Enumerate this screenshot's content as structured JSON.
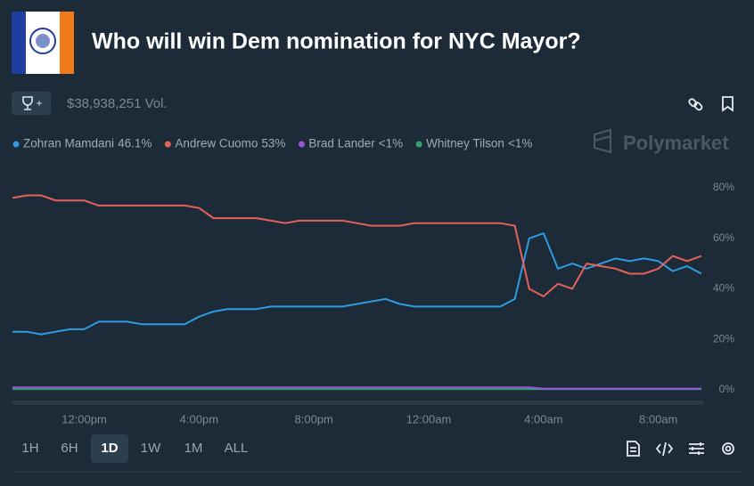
{
  "header": {
    "title": "Who will win Dem nomination for NYC Mayor?",
    "volume": "$38,938,251 Vol.",
    "brand": "Polymarket"
  },
  "controls": {
    "ranges": [
      "1H",
      "6H",
      "1D",
      "1W",
      "1M",
      "ALL"
    ],
    "active": "1D"
  },
  "chart_data": {
    "type": "line",
    "categories": [
      null,
      null,
      null,
      null,
      null,
      "12:00pm",
      null,
      null,
      null,
      null,
      null,
      null,
      null,
      "4:00pm",
      null,
      null,
      null,
      null,
      null,
      null,
      null,
      "8:00pm",
      null,
      null,
      null,
      null,
      null,
      null,
      null,
      "12:00am",
      null,
      null,
      null,
      null,
      null,
      null,
      null,
      "4:00am",
      null,
      null,
      null,
      null,
      null,
      null,
      null,
      "8:00am",
      null,
      null,
      null
    ],
    "series": [
      {
        "name": "Zohran Mamdani",
        "current": "46.1%",
        "color": "#2e9ce0",
        "values": [
          23,
          23,
          22,
          23,
          24,
          24,
          27,
          27,
          27,
          26,
          26,
          26,
          26,
          29,
          31,
          32,
          32,
          32,
          33,
          33,
          33,
          33,
          33,
          33,
          34,
          35,
          36,
          34,
          33,
          33,
          33,
          33,
          33,
          33,
          33,
          36,
          60,
          62,
          48,
          50,
          48,
          50,
          52,
          51,
          52,
          51,
          47,
          49,
          46
        ]
      },
      {
        "name": "Andrew Cuomo",
        "current": "53%",
        "color": "#e5615a",
        "values": [
          76,
          77,
          77,
          75,
          75,
          75,
          73,
          73,
          73,
          73,
          73,
          73,
          73,
          72,
          68,
          68,
          68,
          68,
          67,
          66,
          67,
          67,
          67,
          67,
          66,
          65,
          65,
          65,
          66,
          66,
          66,
          66,
          66,
          66,
          66,
          65,
          40,
          37,
          42,
          40,
          50,
          49,
          48,
          46,
          46,
          48,
          53,
          51,
          53
        ]
      },
      {
        "name": "Brad Lander",
        "current": "<1%",
        "color": "#9b55d8",
        "values": [
          1,
          1,
          1,
          1,
          1,
          1,
          1,
          1,
          1,
          1,
          1,
          1,
          1,
          1,
          1,
          1,
          1,
          1,
          1,
          1,
          1,
          1,
          1,
          1,
          1,
          1,
          1,
          1,
          1,
          1,
          1,
          1,
          1,
          1,
          1,
          1,
          1,
          0.5,
          0.5,
          0.5,
          0.5,
          0.5,
          0.5,
          0.5,
          0.5,
          0.5,
          0.5,
          0.5,
          0.5
        ]
      },
      {
        "name": "Whitney Tilson",
        "current": "<1%",
        "color": "#2fa46a",
        "values": [
          0.3,
          0.3,
          0.3,
          0.3,
          0.3,
          0.3,
          0.3,
          0.3,
          0.3,
          0.3,
          0.3,
          0.3,
          0.3,
          0.3,
          0.3,
          0.3,
          0.3,
          0.3,
          0.3,
          0.3,
          0.3,
          0.3,
          0.3,
          0.3,
          0.3,
          0.3,
          0.3,
          0.3,
          0.3,
          0.3,
          0.3,
          0.3,
          0.3,
          0.3,
          0.3,
          0.3,
          0.3,
          0.3,
          0.3,
          0.3,
          0.3,
          0.3,
          0.3,
          0.3,
          0.3,
          0.3,
          0.3,
          0.3,
          0.3
        ]
      }
    ],
    "ylim": [
      0,
      80
    ],
    "yticks": [
      {
        "value": 0,
        "label": "0%"
      },
      {
        "value": 20,
        "label": "20%"
      },
      {
        "value": 40,
        "label": "40%"
      },
      {
        "value": 60,
        "label": "60%"
      },
      {
        "value": 80,
        "label": "80%"
      }
    ],
    "grid": true
  }
}
